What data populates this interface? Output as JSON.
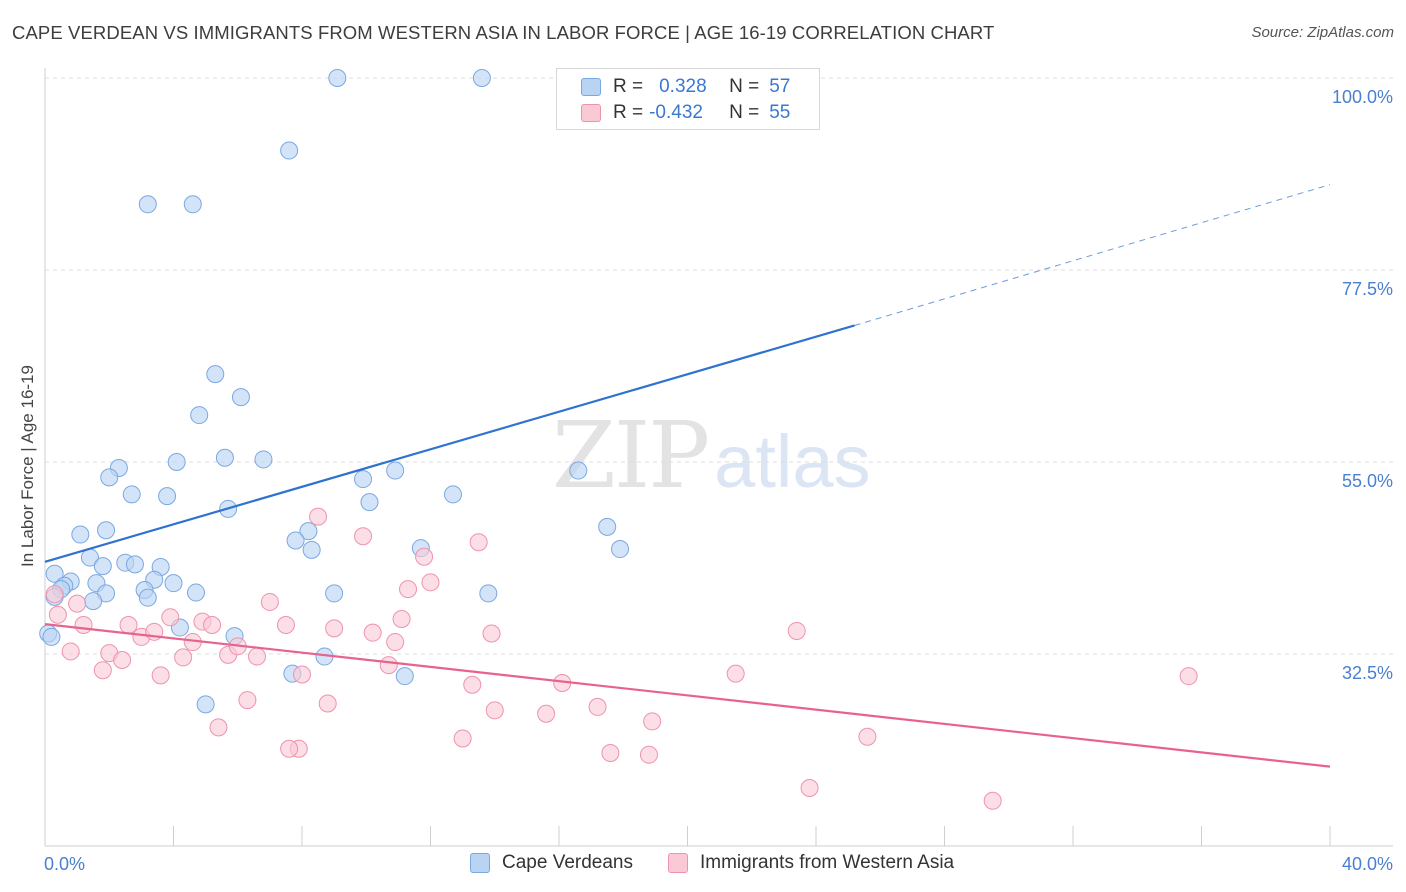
{
  "title": "CAPE VERDEAN VS IMMIGRANTS FROM WESTERN ASIA IN LABOR FORCE | AGE 16-19 CORRELATION CHART",
  "source": "Source: ZipAtlas.com",
  "watermark": {
    "zip": "ZIP",
    "atlas": "atlas"
  },
  "legend": {
    "r_label": "R =",
    "n_label": "N =",
    "rows": [
      {
        "r": "0.328",
        "n": "57"
      },
      {
        "r": "-0.432",
        "n": "55"
      }
    ]
  },
  "colors": {
    "blue_fill": "#b9d3f3",
    "blue_stroke": "#7aa8e0",
    "blue_line": "#2f72d0",
    "pink_fill": "#f9c9d6",
    "pink_stroke": "#ee93ad",
    "pink_line": "#e8628e",
    "tick_text": "#4a7fd0",
    "grid": "#dddddd"
  },
  "chart_data": {
    "type": "scatter",
    "ylabel": "In Labor Force | Age 16-19",
    "x_tick_labels": [
      "0.0%",
      "40.0%"
    ],
    "y_tick_labels": [
      "32.5%",
      "55.0%",
      "77.5%",
      "100.0%"
    ],
    "y_ticks": [
      32.5,
      55.0,
      77.5,
      100.0
    ],
    "xlim": [
      0,
      40
    ],
    "ylim": [
      10,
      100
    ],
    "grid": true,
    "legend_placement": "top-center",
    "series": [
      {
        "name": "Cape Verdeans",
        "color": "#b9d3f3",
        "trend": {
          "x0": 0,
          "y0": 43.3,
          "x1": 25.2,
          "y1": 71.0,
          "x_dash_end": 40,
          "y_dash_end": 87.5
        },
        "points": [
          [
            9.1,
            100
          ],
          [
            13.6,
            100
          ],
          [
            7.6,
            91.5
          ],
          [
            3.2,
            85.2
          ],
          [
            4.6,
            85.2
          ],
          [
            5.3,
            65.3
          ],
          [
            6.1,
            62.6
          ],
          [
            4.8,
            60.5
          ],
          [
            5.6,
            55.5
          ],
          [
            6.8,
            55.3
          ],
          [
            4.1,
            55.0
          ],
          [
            2.3,
            54.3
          ],
          [
            10.9,
            54.0
          ],
          [
            16.6,
            54.0
          ],
          [
            2.0,
            53.2
          ],
          [
            9.9,
            53.0
          ],
          [
            2.7,
            51.2
          ],
          [
            3.8,
            51.0
          ],
          [
            12.7,
            51.2
          ],
          [
            10.1,
            50.3
          ],
          [
            5.7,
            49.5
          ],
          [
            17.5,
            47.4
          ],
          [
            1.9,
            47.0
          ],
          [
            8.2,
            46.9
          ],
          [
            1.1,
            46.5
          ],
          [
            7.8,
            45.8
          ],
          [
            11.7,
            44.9
          ],
          [
            8.3,
            44.7
          ],
          [
            17.9,
            44.8
          ],
          [
            1.4,
            43.8
          ],
          [
            2.5,
            43.2
          ],
          [
            2.8,
            43.0
          ],
          [
            1.8,
            42.8
          ],
          [
            3.6,
            42.7
          ],
          [
            0.3,
            41.9
          ],
          [
            3.4,
            41.2
          ],
          [
            0.8,
            41.0
          ],
          [
            1.6,
            40.8
          ],
          [
            4.0,
            40.8
          ],
          [
            0.6,
            40.5
          ],
          [
            0.5,
            40.1
          ],
          [
            3.1,
            40.0
          ],
          [
            4.7,
            39.7
          ],
          [
            1.9,
            39.6
          ],
          [
            9.0,
            39.6
          ],
          [
            13.8,
            39.6
          ],
          [
            0.3,
            39.2
          ],
          [
            3.2,
            39.1
          ],
          [
            1.5,
            38.7
          ],
          [
            4.2,
            35.6
          ],
          [
            5.9,
            34.6
          ],
          [
            0.1,
            34.9
          ],
          [
            8.7,
            32.2
          ],
          [
            7.7,
            30.2
          ],
          [
            11.2,
            29.9
          ],
          [
            5.0,
            26.6
          ],
          [
            0.2,
            34.5
          ]
        ]
      },
      {
        "name": "Immigrants from Western Asia",
        "color": "#f9c9d6",
        "trend": {
          "x0": 0,
          "y0": 36.0,
          "x1": 40,
          "y1": 19.3
        },
        "points": [
          [
            0.3,
            39.5
          ],
          [
            0.4,
            37.1
          ],
          [
            0.8,
            32.8
          ],
          [
            1.2,
            35.9
          ],
          [
            1.0,
            38.4
          ],
          [
            1.8,
            30.6
          ],
          [
            2.0,
            32.6
          ],
          [
            2.4,
            31.8
          ],
          [
            2.6,
            35.9
          ],
          [
            3.0,
            34.5
          ],
          [
            3.4,
            35.1
          ],
          [
            3.6,
            30.0
          ],
          [
            3.9,
            36.8
          ],
          [
            4.3,
            32.1
          ],
          [
            4.6,
            33.9
          ],
          [
            4.9,
            36.3
          ],
          [
            5.2,
            35.9
          ],
          [
            5.4,
            23.9
          ],
          [
            5.7,
            32.4
          ],
          [
            6.0,
            33.4
          ],
          [
            6.3,
            27.1
          ],
          [
            6.6,
            32.2
          ],
          [
            7.0,
            38.6
          ],
          [
            7.5,
            35.9
          ],
          [
            7.9,
            21.4
          ],
          [
            7.6,
            21.4
          ],
          [
            8.0,
            30.1
          ],
          [
            8.5,
            48.6
          ],
          [
            8.8,
            26.7
          ],
          [
            9.0,
            35.5
          ],
          [
            9.9,
            46.3
          ],
          [
            10.2,
            35.0
          ],
          [
            10.7,
            31.2
          ],
          [
            10.9,
            33.9
          ],
          [
            11.1,
            36.6
          ],
          [
            11.3,
            40.1
          ],
          [
            11.8,
            43.9
          ],
          [
            12.0,
            40.9
          ],
          [
            13.0,
            22.6
          ],
          [
            13.3,
            28.9
          ],
          [
            13.5,
            45.6
          ],
          [
            13.9,
            34.9
          ],
          [
            14.0,
            25.9
          ],
          [
            15.6,
            25.5
          ],
          [
            16.1,
            29.1
          ],
          [
            17.2,
            26.3
          ],
          [
            17.6,
            20.9
          ],
          [
            18.8,
            20.7
          ],
          [
            18.9,
            24.6
          ],
          [
            21.5,
            30.2
          ],
          [
            23.4,
            35.2
          ],
          [
            23.8,
            16.8
          ],
          [
            25.6,
            22.8
          ],
          [
            29.5,
            15.3
          ],
          [
            35.6,
            29.9
          ]
        ]
      }
    ]
  }
}
